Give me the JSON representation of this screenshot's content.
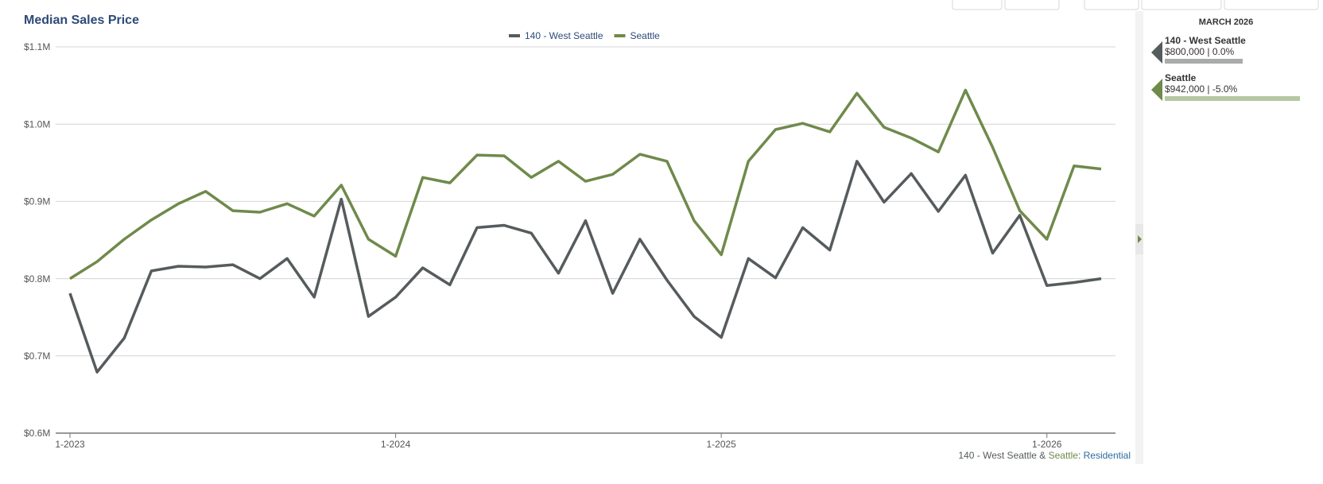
{
  "chart_data": {
    "type": "line",
    "title": "Median Sales Price",
    "categories": [
      "1-2023",
      null,
      null,
      null,
      null,
      null,
      null,
      null,
      null,
      null,
      null,
      null,
      "1-2024",
      null,
      null,
      null,
      null,
      null,
      null,
      null,
      null,
      null,
      null,
      null,
      "1-2025",
      null,
      null,
      null,
      null,
      null,
      null,
      null,
      null,
      null,
      null,
      null,
      "1-2026",
      null,
      null
    ],
    "series": [
      {
        "name": "140 - West Seattle",
        "color": "#565b5d",
        "values": [
          781000,
          679000,
          723000,
          810000,
          816000,
          815000,
          818000,
          800000,
          826000,
          776000,
          903000,
          751000,
          776000,
          814000,
          792000,
          866000,
          869000,
          859000,
          807000,
          875000,
          781000,
          851000,
          798000,
          751000,
          724000,
          826000,
          801000,
          866000,
          837000,
          952000,
          899000,
          936000,
          887000,
          934000,
          833000,
          882000,
          791000,
          795000,
          800000
        ]
      },
      {
        "name": "Seattle",
        "color": "#6f8a4b",
        "values": [
          800000,
          822000,
          851000,
          876000,
          897000,
          913000,
          888000,
          886000,
          897000,
          881000,
          921000,
          851000,
          829000,
          931000,
          924000,
          960000,
          959000,
          931000,
          952000,
          926000,
          935000,
          961000,
          952000,
          875000,
          831000,
          952000,
          993000,
          1001000,
          990000,
          1040000,
          996000,
          982000,
          964000,
          1044000,
          970000,
          888000,
          851000,
          946000,
          942000
        ]
      }
    ],
    "ylim": [
      600000,
      1100000
    ],
    "yticks": [
      {
        "value": 600000,
        "label": "$0.6M"
      },
      {
        "value": 700000,
        "label": "$0.7M"
      },
      {
        "value": 800000,
        "label": "$0.8M"
      },
      {
        "value": 900000,
        "label": "$0.9M"
      },
      {
        "value": 1000000,
        "label": "$1.0M"
      },
      {
        "value": 1100000,
        "label": "$1.1M"
      }
    ],
    "grid": true,
    "legend": "top"
  },
  "panel": {
    "title": "MARCH 2026",
    "entries": [
      {
        "value_text": "$800,000 | 0.0%",
        "color": "#565b5d",
        "bar_color": "#a9abab"
      },
      {
        "value_text": "$942,000 | -5.0%",
        "color": "#6f8a4b",
        "bar_color": "#b6c8a2"
      }
    ]
  },
  "footnote": [
    "140 - West Seattle",
    " & ",
    "Seattle",
    ": ",
    "Residential"
  ]
}
